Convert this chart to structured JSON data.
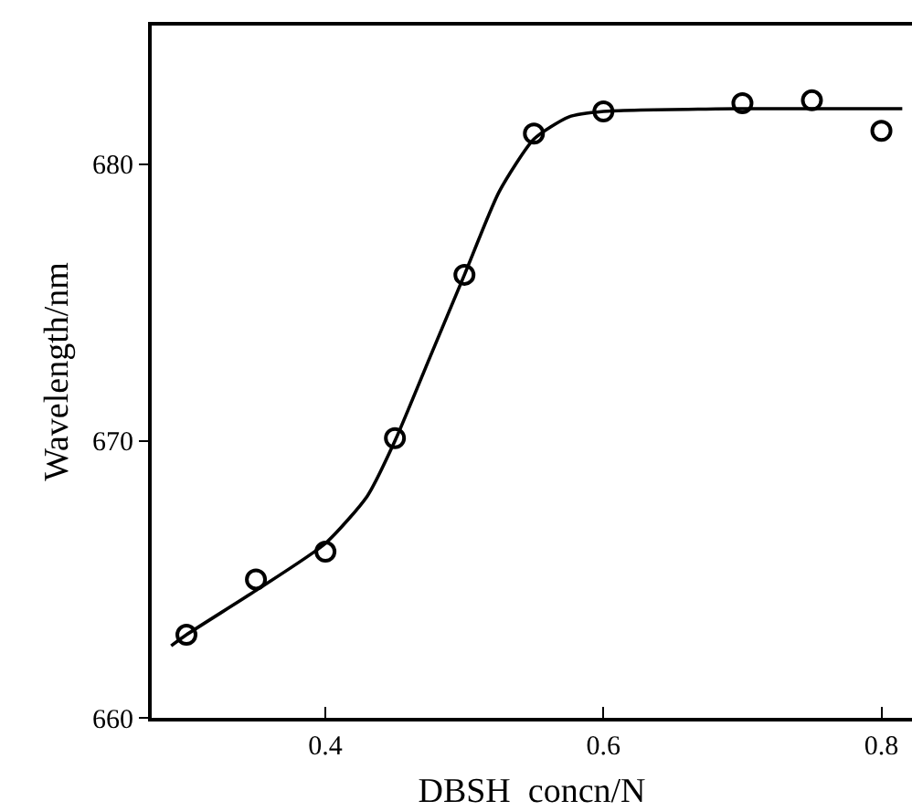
{
  "chart_data": {
    "type": "scatter",
    "xlabel": "DBSH  concn/N",
    "ylabel": "Wavelength/nm",
    "xlim": [
      0.275,
      0.822
    ],
    "xticks": [
      0.4,
      0.6,
      0.8
    ],
    "ylim": [
      660,
      685
    ],
    "yticks": [
      660,
      670,
      680
    ],
    "marker": "circle",
    "series": [
      {
        "color": "#000000",
        "x": [
          0.3,
          0.35,
          0.4,
          0.45,
          0.5,
          0.55,
          0.6,
          0.7,
          0.75,
          0.8
        ],
        "values": [
          663.0,
          665.0,
          666.0,
          670.1,
          676.0,
          681.1,
          681.9,
          682.2,
          682.3,
          681.2
        ]
      },
      {
        "type": "line",
        "color": "#000000",
        "marker": "none",
        "line_style": "solid",
        "x": [
          0.289,
          0.3,
          0.35,
          0.4,
          0.43,
          0.45,
          0.475,
          0.5,
          0.525,
          0.55,
          0.575,
          0.6,
          0.7,
          0.815
        ],
        "values": [
          662.6,
          663.0,
          664.6,
          666.3,
          668.0,
          670.0,
          673.0,
          676.0,
          679.0,
          680.9,
          681.7,
          681.9,
          682.0,
          682.0
        ]
      }
    ]
  }
}
